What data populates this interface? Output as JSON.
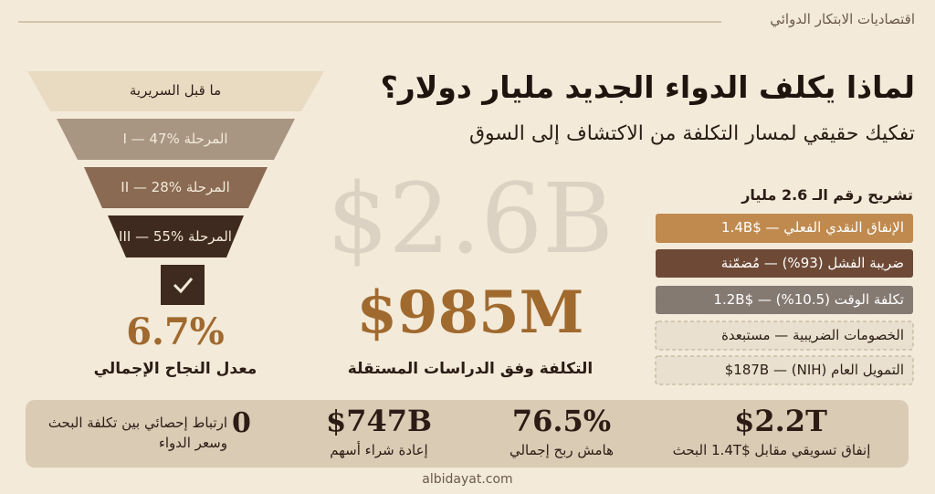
{
  "header": {
    "label": "اقتصاديات الابتكار الدوائي"
  },
  "title": "لماذا يكلف الدواء الجديد مليار دولار؟",
  "subtitle": "تفكيك حقيقي لمسار التكلفة من الاكتشاف إلى السوق",
  "headline": {
    "claimed": "$2.6B",
    "independent": "$985M",
    "independent_caption": "التكلفة وفق الدراسات المستقلة"
  },
  "funnel": {
    "stages": [
      "ما قبل السريرية",
      "المرحلة I — 47%",
      "المرحلة II — 28%",
      "المرحلة III — 55%"
    ],
    "success_value": "6.7%",
    "success_label": "معدل النجاح الإجمالي"
  },
  "breakdown": {
    "title": "تشريح رقم الـ 2.6 مليار",
    "items": [
      "الإنفاق النقدي الفعلي — $1.4B",
      "ضريبة الفشل (93%) — مُضمّنة",
      "تكلفة الوقت (10.5%) — $1.2B",
      "الخصومات الضريبية — مستبعدة",
      "التمويل العام (NIH) — $187B"
    ]
  },
  "stats": [
    {
      "value": "$2.2T",
      "label": "إنفاق تسويقي مقابل $1.4T  البحث"
    },
    {
      "value": "76.5%",
      "label": "هامش ربح إجمالي"
    },
    {
      "value": "$747B",
      "label": "إعادة شراء أسهم"
    },
    {
      "value": "0",
      "label": "ارتباط إحصائي بين تكلفة البحث وسعر الدواء"
    }
  ],
  "footer": "albidayat.com"
}
